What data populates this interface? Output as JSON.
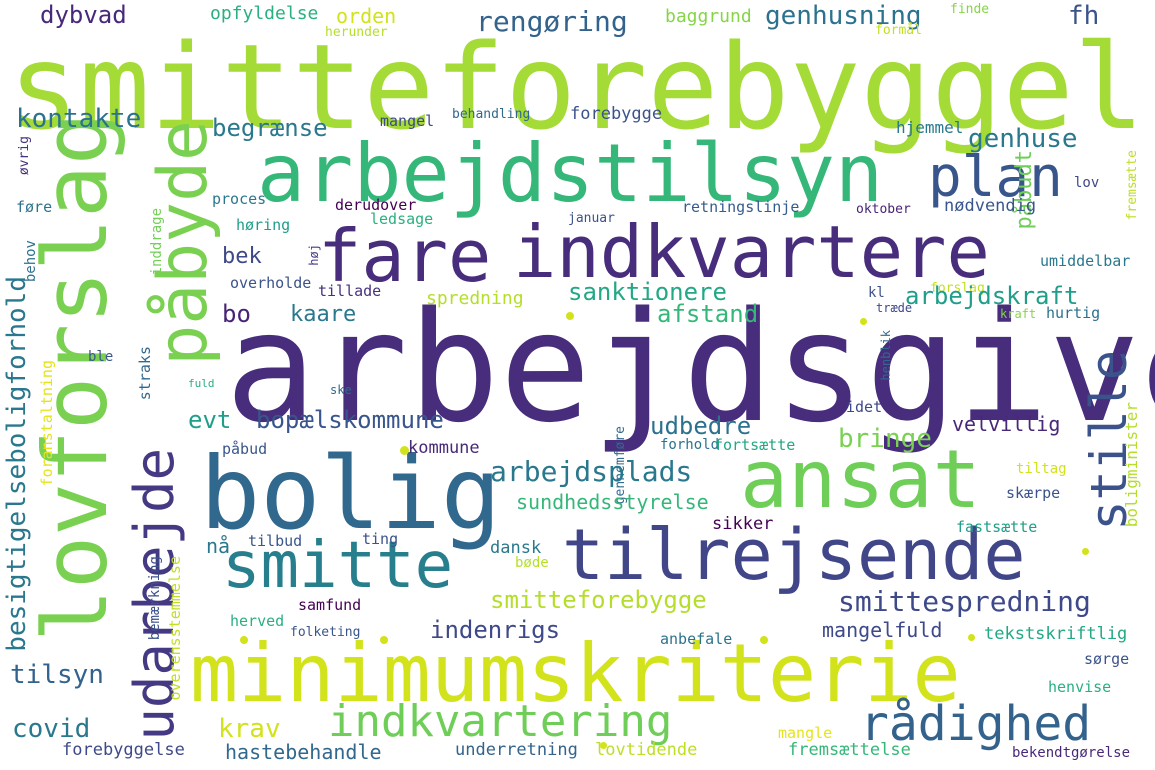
{
  "words": [
    {
      "text": "smitteforebyggelse",
      "color": "#a5db36"
    },
    {
      "text": "arbejdsgiver",
      "color": "#472d7b"
    },
    {
      "text": "lovforslag",
      "color": "#7ad151"
    },
    {
      "text": "arbejdstilsyn",
      "color": "#35b779"
    },
    {
      "text": "påbyde",
      "color": "#7ad151"
    },
    {
      "text": "fare",
      "color": "#472d7b"
    },
    {
      "text": "indkvartere",
      "color": "#472d7b"
    },
    {
      "text": "plan",
      "color": "#39568c"
    },
    {
      "text": "bolig",
      "color": "#31688e"
    },
    {
      "text": "ansat",
      "color": "#6ece58"
    },
    {
      "text": "udarbejde",
      "color": "#443983"
    },
    {
      "text": "tilrejsende",
      "color": "#404688"
    },
    {
      "text": "smitte",
      "color": "#277f8e"
    },
    {
      "text": "stille",
      "color": "#3b528b"
    },
    {
      "text": "minimumskriterie",
      "color": "#d2e21b"
    },
    {
      "text": "indkvartering",
      "color": "#6ece58"
    },
    {
      "text": "rådighed",
      "color": "#33638d"
    },
    {
      "text": "dybvad",
      "color": "#482878"
    },
    {
      "text": "opfyldelse",
      "color": "#2ab07f"
    },
    {
      "text": "orden",
      "color": "#d2e21b"
    },
    {
      "text": "rengøring",
      "color": "#33638d"
    },
    {
      "text": "baggrund",
      "color": "#86d549"
    },
    {
      "text": "genhusning",
      "color": "#2c728e"
    },
    {
      "text": "fh",
      "color": "#3b528b"
    },
    {
      "text": "finde",
      "color": "#86d549"
    },
    {
      "text": "herunder",
      "color": "#b5de2b"
    },
    {
      "text": "formål",
      "color": "#c2df23"
    },
    {
      "text": "kontakte",
      "color": "#2c728e"
    },
    {
      "text": "begrænse",
      "color": "#2a788e"
    },
    {
      "text": "mangel",
      "color": "#3e4989"
    },
    {
      "text": "behandling",
      "color": "#31688e"
    },
    {
      "text": "forebygge",
      "color": "#3b528b"
    },
    {
      "text": "hjemmel",
      "color": "#2a788e"
    },
    {
      "text": "genhuse",
      "color": "#2a788e"
    },
    {
      "text": "påbudt",
      "color": "#6ece58"
    },
    {
      "text": "øvrig",
      "color": "#46327e"
    },
    {
      "text": "fremsætte",
      "color": "#bddf26"
    },
    {
      "text": "lov",
      "color": "#3e4989"
    },
    {
      "text": "proces",
      "color": "#2a788e"
    },
    {
      "text": "derudover",
      "color": "#440154"
    },
    {
      "text": "ledsage",
      "color": "#2ab07f"
    },
    {
      "text": "januar",
      "color": "#3b528b"
    },
    {
      "text": "retningslinje",
      "color": "#365c8d"
    },
    {
      "text": "oktober",
      "color": "#482475"
    },
    {
      "text": "nødvendig",
      "color": "#39568c"
    },
    {
      "text": "føre",
      "color": "#2c728e"
    },
    {
      "text": "høring",
      "color": "#1f9e89"
    },
    {
      "text": "inddrage",
      "color": "#73d056"
    },
    {
      "text": "behov",
      "color": "#2c728e"
    },
    {
      "text": "bek",
      "color": "#3e4989"
    },
    {
      "text": "høj",
      "color": "#443983"
    },
    {
      "text": "umiddelbar",
      "color": "#2a788e"
    },
    {
      "text": "besigtigelseboligforhold",
      "color": "#2a788e"
    },
    {
      "text": "overholde",
      "color": "#3b528b"
    },
    {
      "text": "tillade",
      "color": "#46327e"
    },
    {
      "text": "sanktionere",
      "color": "#22a884"
    },
    {
      "text": "forslag",
      "color": "#c2df23"
    },
    {
      "text": "arbejdskraft",
      "color": "#1f9e89"
    },
    {
      "text": "bo",
      "color": "#482475"
    },
    {
      "text": "kaare",
      "color": "#2a788e"
    },
    {
      "text": "spredning",
      "color": "#b5de2b"
    },
    {
      "text": "afstand",
      "color": "#35b779"
    },
    {
      "text": "træde",
      "color": "#3e4989"
    },
    {
      "text": "kl",
      "color": "#3b528b"
    },
    {
      "text": "kraft",
      "color": "#86d549"
    },
    {
      "text": "hurtig",
      "color": "#2c728e"
    },
    {
      "text": "henblik",
      "color": "#31688e"
    },
    {
      "text": "foranstaltning",
      "color": "#e5e419"
    },
    {
      "text": "ble",
      "color": "#39568c"
    },
    {
      "text": "straks",
      "color": "#31688e"
    },
    {
      "text": "fuld",
      "color": "#2ab07f"
    },
    {
      "text": "ske",
      "color": "#31688e"
    },
    {
      "text": "idet",
      "color": "#3e4989"
    },
    {
      "text": "evt",
      "color": "#1f9e89"
    },
    {
      "text": "bopælskommune",
      "color": "#39568c"
    },
    {
      "text": "udbedre",
      "color": "#2c728e"
    },
    {
      "text": "velvillig",
      "color": "#482878"
    },
    {
      "text": "boligminister",
      "color": "#b5de2b"
    },
    {
      "text": "påbud",
      "color": "#39568c"
    },
    {
      "text": "kommune",
      "color": "#482878"
    },
    {
      "text": "gennemføre",
      "color": "#31688e"
    },
    {
      "text": "forhold",
      "color": "#2c728e"
    },
    {
      "text": "fortsætte",
      "color": "#22a884"
    },
    {
      "text": "bringe",
      "color": "#7ad151"
    },
    {
      "text": "arbejdsplads",
      "color": "#2a788e"
    },
    {
      "text": "sundhedsstyrelse",
      "color": "#35b779"
    },
    {
      "text": "tiltag",
      "color": "#d2e21b"
    },
    {
      "text": "skærpe",
      "color": "#3b528b"
    },
    {
      "text": "fastsætte",
      "color": "#1f9e89"
    },
    {
      "text": "sikker",
      "color": "#440154"
    },
    {
      "text": "nå",
      "color": "#2a788e"
    },
    {
      "text": "tilbud",
      "color": "#39568c"
    },
    {
      "text": "ting",
      "color": "#3b528b"
    },
    {
      "text": "dansk",
      "color": "#2a788e"
    },
    {
      "text": "bemærkning",
      "color": "#3b528b"
    },
    {
      "text": "overensstemmelse",
      "color": "#c2df23"
    },
    {
      "text": "smitteforebygge",
      "color": "#b5de2b"
    },
    {
      "text": "smittespredning",
      "color": "#3e4989"
    },
    {
      "text": "samfund",
      "color": "#440154"
    },
    {
      "text": "bøde",
      "color": "#b5de2b"
    },
    {
      "text": "tilsyn",
      "color": "#33638d"
    },
    {
      "text": "indenrigs",
      "color": "#3e4989"
    },
    {
      "text": "herved",
      "color": "#2ab07f"
    },
    {
      "text": "folketing",
      "color": "#39568c"
    },
    {
      "text": "mangelfuld",
      "color": "#3e4989"
    },
    {
      "text": "tekstskriftlig",
      "color": "#22a884"
    },
    {
      "text": "sørge",
      "color": "#3b528b"
    },
    {
      "text": "anbefale",
      "color": "#2c728e"
    },
    {
      "text": "henvise",
      "color": "#2ab07f"
    },
    {
      "text": "covid",
      "color": "#2a788e"
    },
    {
      "text": "krav",
      "color": "#d2e21b"
    },
    {
      "text": "mangle",
      "color": "#e5e419"
    },
    {
      "text": "forebyggelse",
      "color": "#3e4989"
    },
    {
      "text": "hastebehandle",
      "color": "#31688e"
    },
    {
      "text": "underretning",
      "color": "#33638d"
    },
    {
      "text": "lovtidende",
      "color": "#bddf26"
    },
    {
      "text": "fremsættelse",
      "color": "#35b779"
    },
    {
      "text": "bekendtgørelse",
      "color": "#482878"
    }
  ],
  "dot_color": "#d2e21b"
}
